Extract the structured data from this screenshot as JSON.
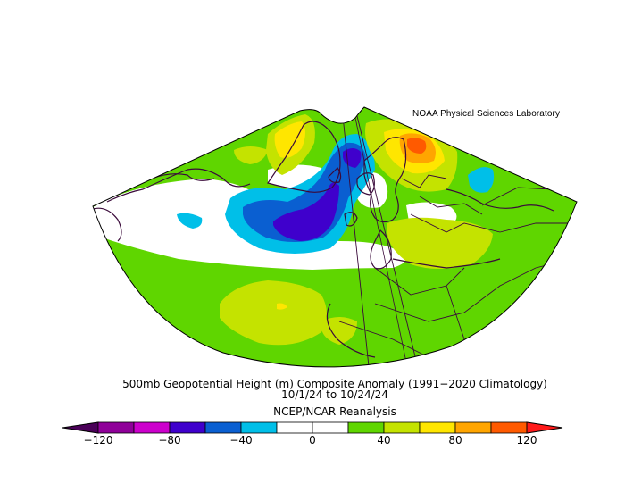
{
  "credit": "NOAA Physical Sciences Laboratory",
  "title": "500mb Geopotential Height (m) Composite Anomaly (1991−2020 Climatology)",
  "date_range": "10/1/24   to 10/24/24",
  "dataset": "NCEP/NCAR Reanalysis",
  "colorbar": {
    "levels": [
      -120,
      -100,
      -80,
      -60,
      -40,
      -20,
      0,
      20,
      40,
      60,
      80,
      100,
      120
    ],
    "colors": [
      "#8f0099",
      "#cc00cc",
      "#3f00cc",
      "#0a5fd1",
      "#00bfe8",
      "#ffffff",
      "#ffffff",
      "#5fd600",
      "#c4e300",
      "#ffe600",
      "#ffa500",
      "#ff5a00"
    ],
    "under_color": "#4a0058",
    "over_color": "#ff1a1a",
    "tick_labels": [
      {
        "value": -120,
        "label": "−120"
      },
      {
        "value": -80,
        "label": "−80"
      },
      {
        "value": -40,
        "label": "−40"
      },
      {
        "value": 0,
        "label": "0"
      },
      {
        "value": 40,
        "label": "40"
      },
      {
        "value": 80,
        "label": "80"
      },
      {
        "value": 120,
        "label": "120"
      }
    ]
  },
  "anomaly_features": [
    {
      "region": "North Atlantic south of Iceland",
      "level": -80,
      "color": "#3f00cc"
    },
    {
      "region": "Iceland / Norwegian Sea",
      "level": -40,
      "color": "#0a5fd1"
    },
    {
      "region": "Scandinavia",
      "level": 100,
      "color": "#ffa500"
    },
    {
      "region": "Greenland",
      "level": 60,
      "color": "#ffe600"
    },
    {
      "region": "Western Russia",
      "level": -40,
      "color": "#00bfe8"
    },
    {
      "region": "Central Atlantic",
      "level": 40,
      "color": "#c4e300"
    },
    {
      "region": "Mediterranean / Eastern Europe",
      "level": 40,
      "color": "#c4e300"
    }
  ]
}
